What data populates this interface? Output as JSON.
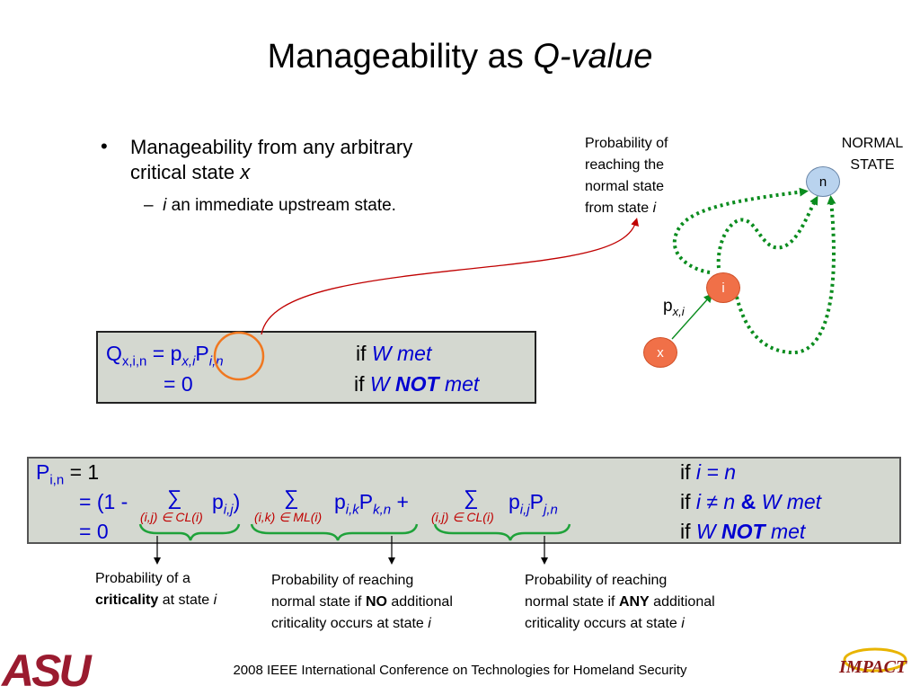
{
  "title": {
    "text": "Manageability as ",
    "italic": "Q-value"
  },
  "bullet": {
    "glyph": "•",
    "line1": "Manageability from any arbitrary",
    "line2": "critical state ",
    "var": "x"
  },
  "subbullet": {
    "dash": "–",
    "var": "i",
    "text": " an immediate upstream state."
  },
  "q_box": {
    "q": "Q",
    "q_sub": "x,i,n",
    "eq_p": " = p",
    "p_sub": "x,i",
    "P": "P",
    "P_sub": "i,n",
    "if1": "if ",
    "cond1": "W met",
    "zero": "= 0",
    "if2": "if ",
    "cond2_a": "W ",
    "cond2_b": "NOT",
    "cond2_c": " met"
  },
  "p_box": {
    "P": "P",
    "P_sub": "i,n",
    "eq1": " = 1",
    "eq2_start": "= (1 - ",
    "sum": "∑",
    "p": "p",
    "p_sub_ij": "i,j",
    "close": ")",
    "sub1": "(i,j) ∈ CL(i)",
    "sub2": "(i,k) ∈ ML(i)",
    "sub3": "(i,j) ∈ CL(i)",
    "p_sub_ik": "i,k",
    "P_sub_kn": "k,n",
    "plus": " + ",
    "P_sub_jn": "j,n",
    "eq3": "= 0",
    "if": "if ",
    "c1": "i = n",
    "c2a": "i ≠ n ",
    "c2amp": "&",
    "c2b": " W met",
    "c3a": "W ",
    "c3b": "NOT",
    "c3c": " met"
  },
  "notes": {
    "n1_l1": "Probability of a",
    "n1_bold": "criticality",
    "n1_rest": " at state ",
    "n1_var": "i",
    "n2_l1": "Probability of reaching",
    "n2_l2a": "normal state if ",
    "n2_bold": "NO",
    "n2_l2b": " additional",
    "n2_l3": "criticality occurs at state ",
    "n2_var": "i",
    "n3_l1": "Probability of reaching",
    "n3_l2a": "normal state if ",
    "n3_bold": "ANY",
    "n3_l2b": " additional",
    "n3_l3": "criticality occurs at state ",
    "n3_var": "i"
  },
  "diagram": {
    "label1": "Probability of",
    "label2": "reaching the",
    "label3": "normal state",
    "label4": "from state ",
    "label_var": "i",
    "normal1": "NORMAL",
    "normal2": "STATE",
    "node_n": "n",
    "node_i": "i",
    "node_x": "x",
    "pxi": "p",
    "pxi_sub": "x,i",
    "colors": {
      "node_n": "#b9d3ee",
      "node_i": "#f07048",
      "dotted": "#0a8c1e",
      "arrow": "#c00000",
      "circle": "#f07820"
    }
  },
  "footer": {
    "text": "2008 IEEE International Conference on Technologies for Homeland Security"
  },
  "logos": {
    "asu": "ASU",
    "impact": "IMPACT"
  }
}
